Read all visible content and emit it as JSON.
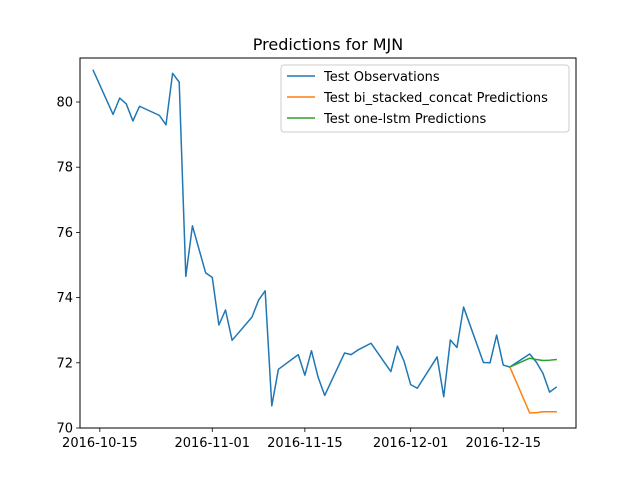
{
  "chart_data": {
    "type": "line",
    "title": "Predictions for MJN",
    "xlabel": "",
    "ylabel": "",
    "x_type": "date",
    "xlim": [
      "2016-10-12",
      "2016-12-26"
    ],
    "ylim": [
      70,
      81.35
    ],
    "x_ticks": [
      "2016-10-15",
      "2016-11-01",
      "2016-11-15",
      "2016-12-01",
      "2016-12-15"
    ],
    "y_ticks": [
      70,
      72,
      74,
      76,
      78,
      80
    ],
    "y_tick_labels": [
      "70",
      "72",
      "74",
      "76",
      "78",
      "80"
    ],
    "grid": false,
    "legend_position": "top-right",
    "series": [
      {
        "name": "Test Observations",
        "color": "#1f77b4",
        "points": [
          [
            "2016-10-14",
            80.97
          ],
          [
            "2016-10-17",
            79.62
          ],
          [
            "2016-10-18",
            80.12
          ],
          [
            "2016-10-19",
            79.94
          ],
          [
            "2016-10-20",
            79.42
          ],
          [
            "2016-10-21",
            79.87
          ],
          [
            "2016-10-24",
            79.59
          ],
          [
            "2016-10-25",
            79.3
          ],
          [
            "2016-10-26",
            80.88
          ],
          [
            "2016-10-27",
            80.61
          ],
          [
            "2016-10-28",
            74.65
          ],
          [
            "2016-10-29",
            76.2
          ],
          [
            "2016-10-31",
            74.76
          ],
          [
            "2016-11-01",
            74.62
          ],
          [
            "2016-11-02",
            73.16
          ],
          [
            "2016-11-03",
            73.62
          ],
          [
            "2016-11-04",
            72.69
          ],
          [
            "2016-11-07",
            73.4
          ],
          [
            "2016-11-08",
            73.92
          ],
          [
            "2016-11-09",
            74.21
          ],
          [
            "2016-11-10",
            70.68
          ],
          [
            "2016-11-11",
            71.8
          ],
          [
            "2016-11-14",
            72.25
          ],
          [
            "2016-11-15",
            71.62
          ],
          [
            "2016-11-16",
            72.37
          ],
          [
            "2016-11-17",
            71.56
          ],
          [
            "2016-11-18",
            71.0
          ],
          [
            "2016-11-21",
            72.3
          ],
          [
            "2016-11-22",
            72.25
          ],
          [
            "2016-11-23",
            72.39
          ],
          [
            "2016-11-25",
            72.6
          ],
          [
            "2016-11-28",
            71.73
          ],
          [
            "2016-11-29",
            72.51
          ],
          [
            "2016-11-30",
            72.05
          ],
          [
            "2016-12-01",
            71.33
          ],
          [
            "2016-12-02",
            71.22
          ],
          [
            "2016-12-05",
            72.18
          ],
          [
            "2016-12-06",
            70.96
          ],
          [
            "2016-12-07",
            72.7
          ],
          [
            "2016-12-08",
            72.47
          ],
          [
            "2016-12-09",
            73.71
          ],
          [
            "2016-12-12",
            72.01
          ],
          [
            "2016-12-13",
            72.0
          ],
          [
            "2016-12-14",
            72.85
          ],
          [
            "2016-12-15",
            71.93
          ],
          [
            "2016-12-16",
            71.87
          ],
          [
            "2016-12-19",
            72.27
          ],
          [
            "2016-12-20",
            72.02
          ],
          [
            "2016-12-21",
            71.68
          ],
          [
            "2016-12-22",
            71.1
          ],
          [
            "2016-12-23",
            71.25
          ]
        ]
      },
      {
        "name": "Test bi_stacked_concat Predictions",
        "color": "#ff7f0e",
        "points": [
          [
            "2016-12-16",
            71.87
          ],
          [
            "2016-12-19",
            70.46
          ],
          [
            "2016-12-20",
            70.47
          ],
          [
            "2016-12-21",
            70.5
          ],
          [
            "2016-12-22",
            70.5
          ],
          [
            "2016-12-23",
            70.5
          ]
        ]
      },
      {
        "name": "Test one-lstm Predictions",
        "color": "#2ca02c",
        "points": [
          [
            "2016-12-16",
            71.87
          ],
          [
            "2016-12-19",
            72.14
          ],
          [
            "2016-12-20",
            72.1
          ],
          [
            "2016-12-21",
            72.07
          ],
          [
            "2016-12-22",
            72.08
          ],
          [
            "2016-12-23",
            72.1
          ]
        ]
      }
    ]
  }
}
